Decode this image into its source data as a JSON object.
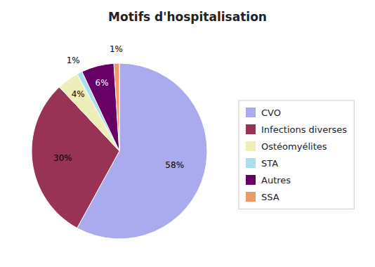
{
  "chart_data": {
    "type": "pie",
    "title": "Motifs d'hospitalisation",
    "categories": [
      "CVO",
      "Infections diverses",
      "Ostéomyélites",
      "STA",
      "Autres",
      "SSA"
    ],
    "values": [
      58,
      30,
      4,
      1,
      6,
      1
    ],
    "value_labels": [
      "58%",
      "30%",
      "4%",
      "1%",
      "6%",
      "1%"
    ],
    "colors": [
      "#aaaaee",
      "#993355",
      "#eeeebb",
      "#aaddee",
      "#660066",
      "#ee9966"
    ],
    "data_labels": true,
    "legend": "right"
  }
}
